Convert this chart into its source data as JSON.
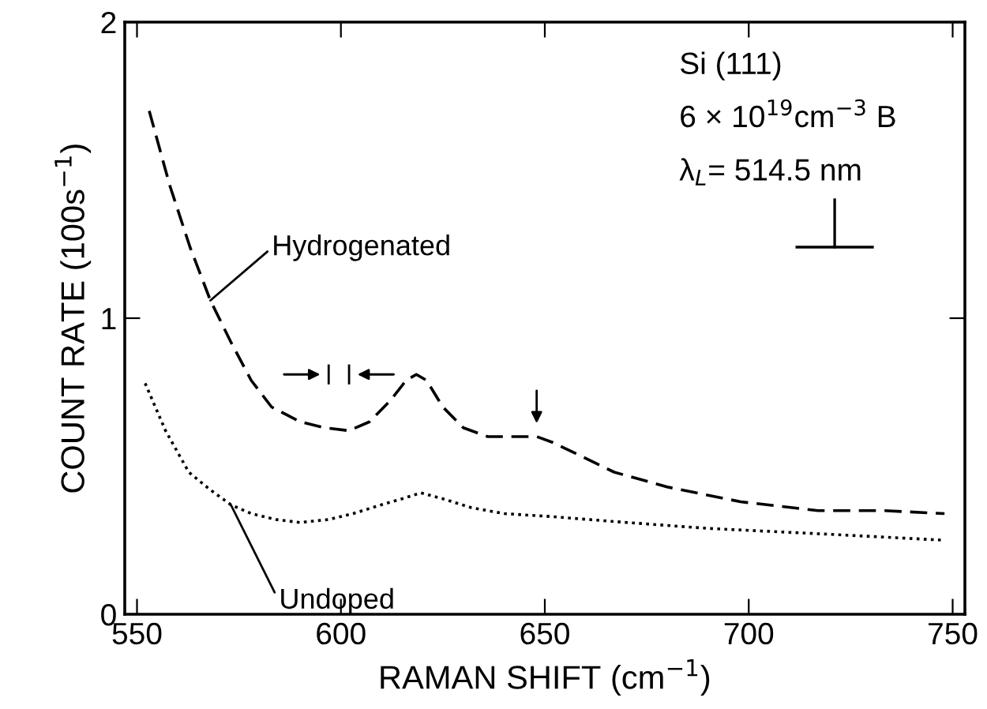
{
  "chart_data": {
    "type": "line",
    "xlabel": "RAMAN SHIFT (cm$^{−1}$)",
    "ylabel": "COUNT RATE (100s$^{−1}$)",
    "xlim": [
      547,
      753
    ],
    "ylim": [
      0,
      2
    ],
    "xticks": [
      550,
      600,
      650,
      700,
      750
    ],
    "yticks": [
      0,
      1,
      2
    ],
    "grid": false,
    "legend": false,
    "series": [
      {
        "name": "Hydrogenated",
        "color": "#000000",
        "line_style": "dashed",
        "x": [
          553,
          558,
          563,
          568,
          573,
          578,
          583,
          590,
          596,
          602,
          607,
          612,
          616,
          618.5,
          621,
          625,
          630,
          636,
          642,
          648,
          652,
          658,
          667,
          680,
          698,
          717,
          733,
          748
        ],
        "values": [
          1.7,
          1.45,
          1.24,
          1.06,
          0.92,
          0.79,
          0.7,
          0.65,
          0.63,
          0.62,
          0.65,
          0.72,
          0.79,
          0.81,
          0.79,
          0.7,
          0.63,
          0.6,
          0.6,
          0.6,
          0.58,
          0.54,
          0.48,
          0.43,
          0.38,
          0.35,
          0.35,
          0.34
        ]
      },
      {
        "name": "Undoped",
        "color": "#000000",
        "line_style": "dotted",
        "x": [
          552,
          557,
          562.7,
          568,
          573,
          578,
          584,
          590,
          597,
          603,
          610,
          615,
          619.6,
          625,
          632,
          640,
          651.5,
          670,
          690,
          720,
          748
        ],
        "values": [
          0.78,
          0.62,
          0.48,
          0.42,
          0.37,
          0.34,
          0.32,
          0.31,
          0.32,
          0.34,
          0.37,
          0.39,
          0.41,
          0.39,
          0.36,
          0.34,
          0.33,
          0.31,
          0.29,
          0.27,
          0.25
        ]
      }
    ],
    "annotations": [
      "Si (111)",
      "6 × 10$^{19}$cm$^{−3}$ B",
      "λ$_{L}$= 514.5 nm"
    ]
  }
}
